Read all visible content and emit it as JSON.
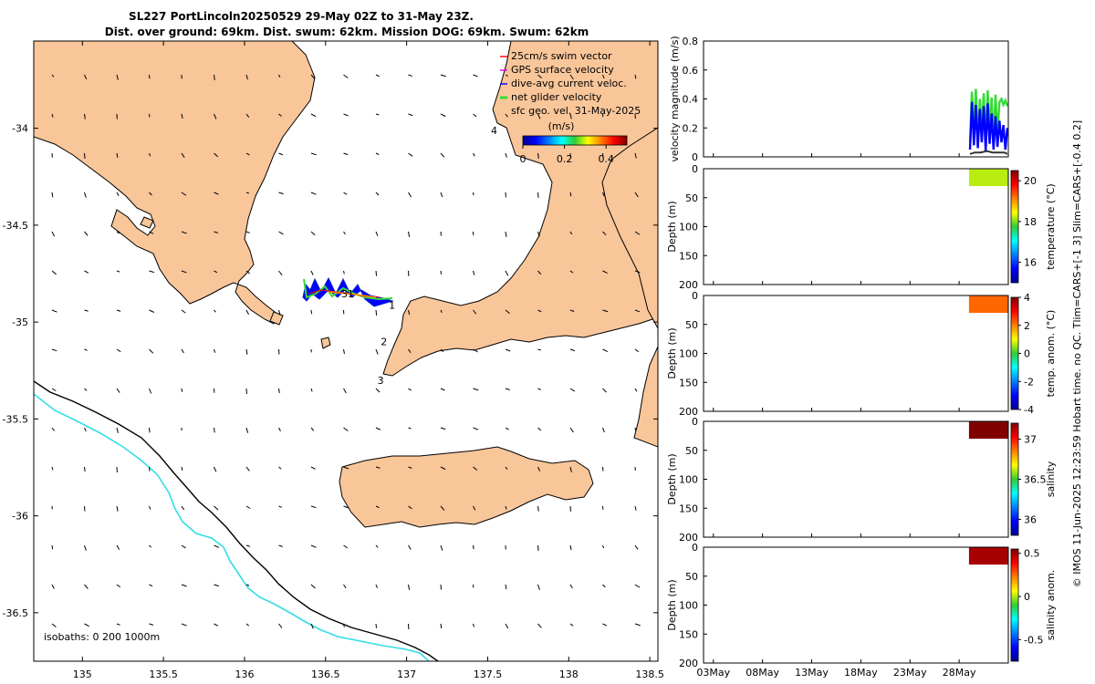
{
  "title_line1": "SL227 PortLincoln20250529 29-May 02Z to 31-May 23Z.",
  "title_line2": "Dist. over ground: 69km. Dist. swum: 62km. Mission DOG: 69km. Swum: 62km",
  "colors": {
    "land": "#f9c69a",
    "isobath_200": "#000000",
    "isobath_1000": "#33dde6",
    "swim_vector": "#ff0000",
    "gps_velocity": "#e000e0",
    "current_velocity": "#0000ff",
    "net_velocity": "#33dd33"
  },
  "chart_data": [
    {
      "type": "map",
      "name": "track-map",
      "xlim": [
        134.7,
        138.55
      ],
      "ylim": [
        -36.75,
        -33.55
      ],
      "xticks": [
        "135",
        "135.5",
        "136",
        "136.5",
        "137",
        "137.5",
        "138",
        "138.5"
      ],
      "xtick_values": [
        135,
        135.5,
        136,
        136.5,
        137,
        137.5,
        138,
        138.5
      ],
      "yticks": [
        "-34",
        "-34.5",
        "-35",
        "-35.5",
        "-36",
        "-36.5"
      ],
      "ytick_values": [
        -34,
        -34.5,
        -35,
        -35.5,
        -36,
        -36.5
      ],
      "legend": [
        {
          "label": "25cm/s swim vector",
          "color": "#ff0000"
        },
        {
          "label": "GPS surface velocity",
          "color": "#e000e0"
        },
        {
          "label": "dive-avg current veloc.",
          "color": "#0000ff"
        },
        {
          "label": "net glider velocity",
          "color": "#33dd33"
        },
        {
          "label": "sfc geo. vel. 31-May-2025",
          "color": ""
        }
      ],
      "colorbar": {
        "label": "(m/s)",
        "min": 0,
        "max": 0.5,
        "ticks": [
          "0",
          "0.2",
          "0.4"
        ],
        "tick_values": [
          0,
          0.2,
          0.4
        ]
      },
      "isobath_label": "isobaths: 0   200  1000m",
      "waypoints": [
        {
          "label": "1",
          "lon": 136.89,
          "lat": -34.93
        },
        {
          "label": "2",
          "lon": 136.84,
          "lat": -35.12
        },
        {
          "label": "3",
          "lon": 136.82,
          "lat": -35.32
        },
        {
          "label": "4",
          "lon": 137.52,
          "lat": -34.03
        }
      ],
      "track_label": "31",
      "track_start": [
        136.87,
        -34.92
      ],
      "track_end": [
        136.35,
        -34.85
      ]
    },
    {
      "type": "line",
      "name": "velocity-magnitude",
      "ylabel": "velocity magnitude (m/s)",
      "ylim": [
        0,
        0.8
      ],
      "yticks": [
        "0",
        "0.2",
        "0.4",
        "0.6",
        "0.8"
      ],
      "ytick_values": [
        0,
        0.2,
        0.4,
        0.6,
        0.8
      ],
      "x_days": [
        0,
        5,
        10,
        15,
        20,
        25
      ],
      "xlim_days": [
        -1,
        30
      ],
      "xticks": [
        "03May",
        "08May",
        "13May",
        "18May",
        "23May",
        "28May"
      ],
      "series": [
        {
          "name": "net glider velocity",
          "color": "#33dd33",
          "x": [
            26.1,
            26.3,
            26.5,
            26.7,
            26.9,
            27.1,
            27.3,
            27.5,
            27.7,
            27.9,
            28.1,
            28.3,
            28.5,
            28.7,
            28.9,
            29.1,
            29.3,
            29.5,
            29.7,
            29.9
          ],
          "values": [
            0.1,
            0.45,
            0.15,
            0.47,
            0.12,
            0.4,
            0.2,
            0.44,
            0.1,
            0.46,
            0.18,
            0.41,
            0.12,
            0.43,
            0.15,
            0.38,
            0.4,
            0.36,
            0.39,
            0.35
          ]
        },
        {
          "name": "dive-avg current",
          "color": "#0000ff",
          "x": [
            26.1,
            26.3,
            26.5,
            26.7,
            26.9,
            27.1,
            27.3,
            27.5,
            27.7,
            27.9,
            28.1,
            28.3,
            28.5,
            28.7,
            28.9,
            29.1,
            29.3,
            29.5,
            29.7,
            29.9
          ],
          "values": [
            0.05,
            0.38,
            0.08,
            0.36,
            0.06,
            0.33,
            0.1,
            0.35,
            0.04,
            0.37,
            0.09,
            0.3,
            0.05,
            0.28,
            0.07,
            0.25,
            0.1,
            0.22,
            0.05,
            0.2
          ]
        },
        {
          "name": "swim speed",
          "color": "#333333",
          "x": [
            26.1,
            26.6,
            27.2,
            27.8,
            28.4,
            29.0,
            29.6,
            29.9
          ],
          "values": [
            0.02,
            0.03,
            0.03,
            0.04,
            0.03,
            0.03,
            0.03,
            0.02
          ]
        }
      ]
    },
    {
      "type": "heatmap",
      "name": "temperature",
      "ylabel": "Depth (m)",
      "cbar_label": "temperature (°C)",
      "ylim": [
        0,
        200
      ],
      "yticks": [
        "0",
        "50",
        "100",
        "150",
        "200"
      ],
      "ytick_values": [
        0,
        50,
        100,
        150,
        200
      ],
      "clim": [
        15,
        20.5
      ],
      "cticks": [
        "16",
        "18",
        "20"
      ],
      "ctick_values": [
        16,
        18,
        20
      ],
      "x_days": [
        26.0,
        30.0
      ],
      "depth_range": [
        0,
        30
      ],
      "value": 18.2
    },
    {
      "type": "heatmap",
      "name": "temp-anomaly",
      "ylabel": "Depth (m)",
      "cbar_label": "temp. anom. (°C)",
      "ylim": [
        0,
        200
      ],
      "yticks": [
        "0",
        "50",
        "100",
        "150",
        "200"
      ],
      "ytick_values": [
        0,
        50,
        100,
        150,
        200
      ],
      "clim": [
        -4,
        4
      ],
      "cticks": [
        "-4",
        "-2",
        "0",
        "2",
        "4"
      ],
      "ctick_values": [
        -4,
        -2,
        0,
        2,
        4
      ],
      "x_days": [
        26.0,
        30.0
      ],
      "depth_range": [
        0,
        30
      ],
      "value": 2.2
    },
    {
      "type": "heatmap",
      "name": "salinity",
      "ylabel": "Depth (m)",
      "cbar_label": "salinity",
      "ylim": [
        0,
        200
      ],
      "yticks": [
        "0",
        "50",
        "100",
        "150",
        "200"
      ],
      "ytick_values": [
        0,
        50,
        100,
        150,
        200
      ],
      "clim": [
        35.8,
        37.2
      ],
      "cticks": [
        "36",
        "36.5",
        "37"
      ],
      "ctick_values": [
        36,
        36.5,
        37
      ],
      "x_days": [
        26.0,
        30.0
      ],
      "depth_range": [
        0,
        30
      ],
      "value": 37.2
    },
    {
      "type": "heatmap",
      "name": "salinity-anomaly",
      "ylabel": "Depth (m)",
      "cbar_label": "salinity anom.",
      "ylim": [
        0,
        200
      ],
      "yticks": [
        "0",
        "50",
        "100",
        "150",
        "200"
      ],
      "ytick_values": [
        0,
        50,
        100,
        150,
        200
      ],
      "clim": [
        -0.75,
        0.55
      ],
      "cticks": [
        "-0.5",
        "0",
        "0.5"
      ],
      "ctick_values": [
        -0.5,
        0,
        0.5
      ],
      "x_days": [
        26.0,
        30.0
      ],
      "depth_range": [
        0,
        30
      ],
      "value": 0.5
    }
  ],
  "footer_text": "© IMOS 11-Jun-2025 12:23:59 Hobart time. no QC. Tlim=CARS+[-1 3] Slim=CARS+[-0.4 0.2]"
}
